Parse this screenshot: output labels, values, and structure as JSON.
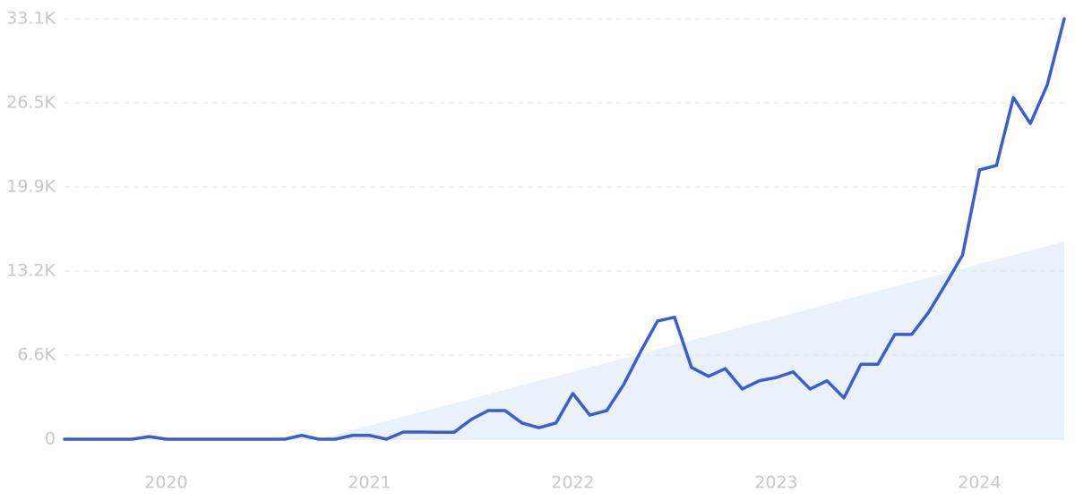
{
  "chart_data": {
    "type": "line",
    "categories": [
      null,
      null,
      null,
      null,
      null,
      null,
      "2020",
      null,
      null,
      null,
      null,
      null,
      null,
      null,
      null,
      null,
      null,
      null,
      "2021",
      null,
      null,
      null,
      null,
      null,
      null,
      null,
      null,
      null,
      null,
      null,
      "2022",
      null,
      null,
      null,
      null,
      null,
      null,
      null,
      null,
      null,
      null,
      null,
      "2023",
      null,
      null,
      null,
      null,
      null,
      null,
      null,
      null,
      null,
      null,
      null,
      "2024",
      null,
      null,
      null,
      null,
      null
    ],
    "values": [
      0,
      0,
      0,
      0,
      0,
      200,
      0,
      0,
      0,
      0,
      0,
      0,
      0,
      0,
      300,
      0,
      0,
      300,
      300,
      0,
      560,
      560,
      550,
      550,
      1550,
      2250,
      2250,
      1270,
      900,
      1270,
      3600,
      1900,
      2250,
      4300,
      6900,
      9300,
      9600,
      5650,
      4950,
      5550,
      3950,
      4600,
      4850,
      5300,
      3950,
      4600,
      3250,
      5900,
      5900,
      8250,
      8250,
      10000,
      12200,
      14500,
      21200,
      21550,
      26900,
      24850,
      27900,
      33100
    ],
    "color": "#3a5fcd",
    "trend": {
      "x": [
        15,
        59
      ],
      "values": [
        0,
        15560
      ],
      "color": "#e8f1fc"
    },
    "ylim": [
      0,
      33100
    ],
    "yticks": [
      0,
      {
        "value": 6620,
        "label": "6.6K"
      },
      {
        "value": 13240,
        "label": "13.2K"
      },
      {
        "value": 19860,
        "label": "19.9K"
      },
      {
        "value": 26480,
        "label": "26.5K"
      },
      {
        "value": 33100,
        "label": "33.1K"
      }
    ],
    "grid": true
  }
}
